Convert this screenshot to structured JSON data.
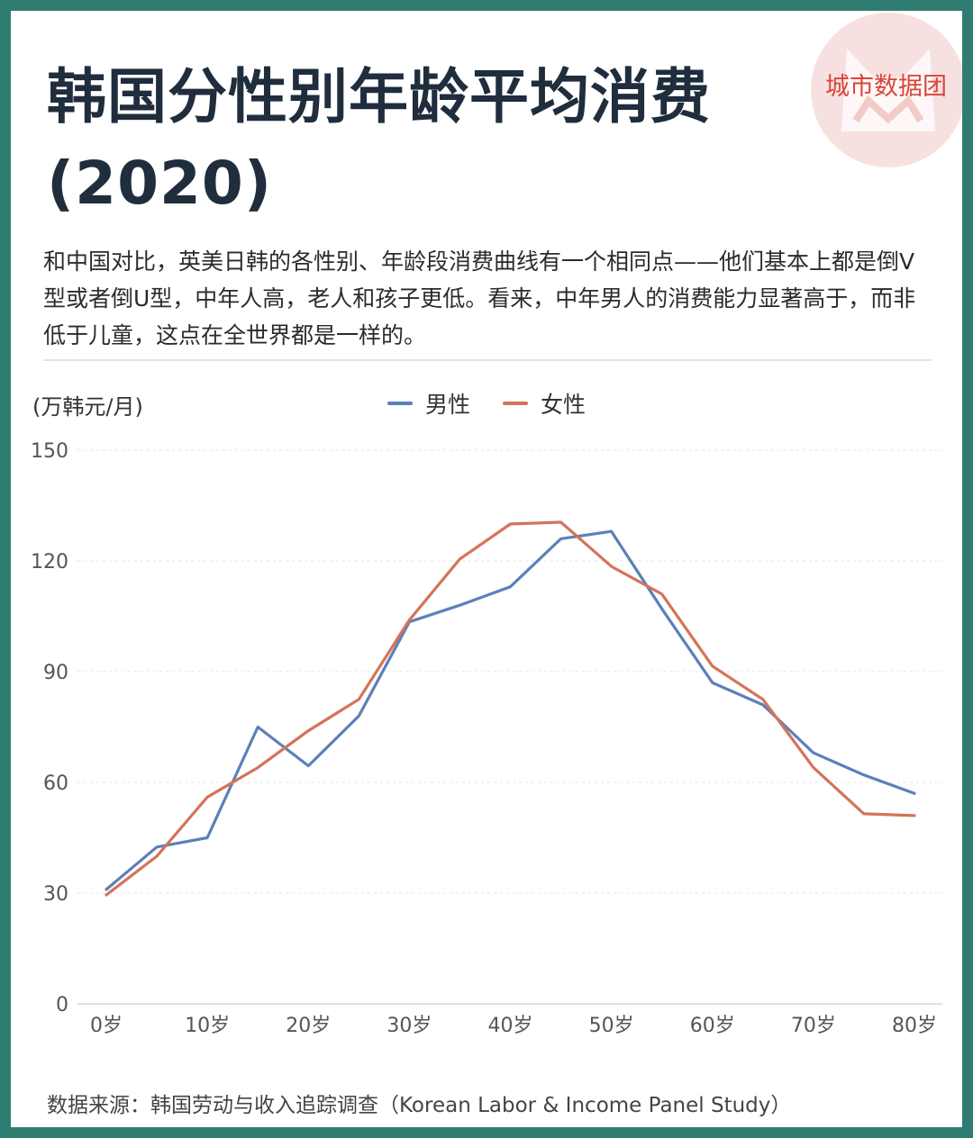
{
  "title": "韩国分性别年龄平均消费(2020)",
  "brand": {
    "name": "城市数据团",
    "color": "#d9453a",
    "icon": "cat-head-logo-watermark"
  },
  "description": "和中国对比，英美日韩的各性别、年龄段消费曲线有一个相同点——他们基本上都是倒V型或者倒U型，中年人高，老人和孩子更低。看来，中年男人的消费能力显著高于，而非低于儿童，这点在全世界都是一样的。",
  "source": "数据来源：韩国劳动与收入追踪调查（Korean Labor & Income Panel Study）",
  "chart_data": {
    "type": "line",
    "ylabel": "(万韩元/月)",
    "ylim": [
      0,
      150
    ],
    "yticks": [
      0,
      30,
      60,
      90,
      120,
      150
    ],
    "xlim": [
      0,
      80
    ],
    "xticks": [
      {
        "value": 0,
        "label": "0岁"
      },
      {
        "value": 10,
        "label": "10岁"
      },
      {
        "value": 20,
        "label": "20岁"
      },
      {
        "value": 30,
        "label": "30岁"
      },
      {
        "value": 40,
        "label": "40岁"
      },
      {
        "value": 50,
        "label": "50岁"
      },
      {
        "value": 60,
        "label": "60岁"
      },
      {
        "value": 70,
        "label": "70岁"
      },
      {
        "value": 80,
        "label": "80岁"
      }
    ],
    "x": [
      0,
      5,
      10,
      15,
      20,
      25,
      30,
      35,
      40,
      45,
      50,
      55,
      60,
      65,
      70,
      75,
      80
    ],
    "grid": true,
    "legend_position": "top-center",
    "series": [
      {
        "name": "男性",
        "color": "#5b80ba",
        "values": [
          31,
          42.5,
          45,
          75,
          64.5,
          78,
          103.5,
          108,
          113,
          126,
          128,
          107,
          87,
          81,
          68,
          62,
          57
        ]
      },
      {
        "name": "女性",
        "color": "#d4735a",
        "values": [
          29.5,
          40,
          56,
          64,
          74,
          82.5,
          104,
          120.5,
          130,
          130.5,
          118.5,
          111,
          91.5,
          82.5,
          64,
          51.5,
          51
        ]
      }
    ]
  }
}
